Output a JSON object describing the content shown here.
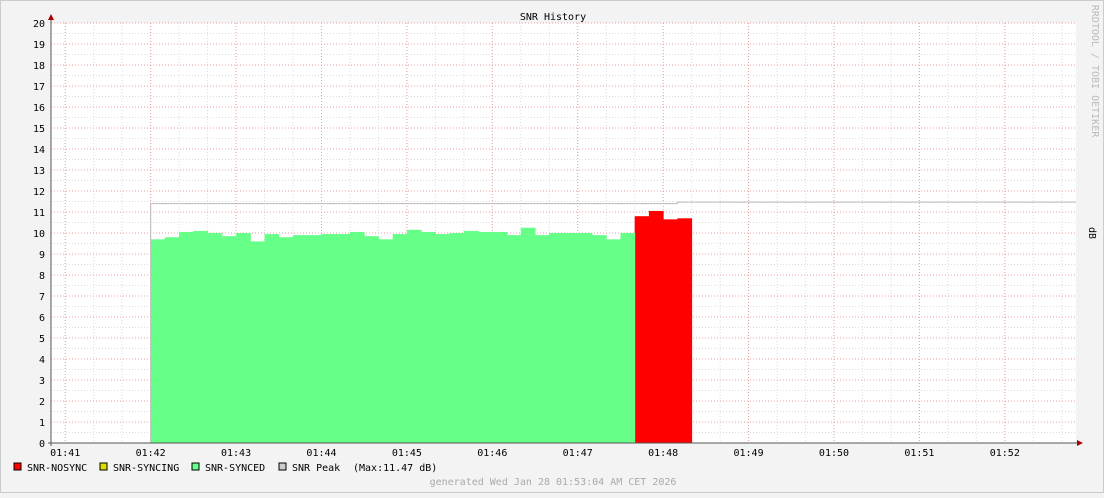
{
  "chart_data": {
    "type": "area",
    "title": "SNR History",
    "ylabel": "dB",
    "watermark": "RRDTOOL / TOBI OETIKER",
    "footer": "generated Wed Jan 28 01:53:04 AM CET 2026",
    "ylim": [
      0,
      20
    ],
    "yticks": [
      0,
      1,
      2,
      3,
      4,
      5,
      6,
      7,
      8,
      9,
      10,
      11,
      12,
      13,
      14,
      15,
      16,
      17,
      18,
      19,
      20
    ],
    "xlim": [
      "01:40:50",
      "01:52:50"
    ],
    "xticks": [
      "01:41",
      "01:42",
      "01:43",
      "01:44",
      "01:45",
      "01:46",
      "01:47",
      "01:48",
      "01:49",
      "01:50",
      "01:51",
      "01:52"
    ],
    "grid": true,
    "step_seconds": 10,
    "series": [
      {
        "name": "SNR-NOSYNC",
        "color": "#ff0000",
        "start": "01:47:40",
        "values": [
          10.8,
          11.05,
          10.65,
          10.7
        ]
      },
      {
        "name": "SNR-SYNCING",
        "color": "#dddd00",
        "start": "01:42:00",
        "values": []
      },
      {
        "name": "SNR-SYNCED",
        "color": "#66ff88",
        "start": "01:42:00",
        "values": [
          9.7,
          9.8,
          10.05,
          10.1,
          10.0,
          9.85,
          10.0,
          9.6,
          9.95,
          9.8,
          9.9,
          9.9,
          9.95,
          9.95,
          10.05,
          9.85,
          9.7,
          9.95,
          10.15,
          10.05,
          9.95,
          10.0,
          10.1,
          10.05,
          10.05,
          9.9,
          10.25,
          9.9,
          10.0,
          10.0,
          10.0,
          9.9,
          9.7,
          10.0
        ]
      },
      {
        "name": "SNR Peak",
        "color": "#cccccc",
        "line": [
          [
            "01:42:00",
            11.4
          ],
          [
            "01:48:10",
            11.4
          ],
          [
            "01:48:10",
            11.47
          ],
          [
            "01:52:50",
            11.47
          ]
        ]
      }
    ],
    "legend": [
      "SNR-NOSYNC",
      "SNR-SYNCING",
      "SNR-SYNCED",
      "SNR Peak"
    ],
    "legend_placement": "bottom-left",
    "peak_note": "(Max:11.47 dB)"
  }
}
